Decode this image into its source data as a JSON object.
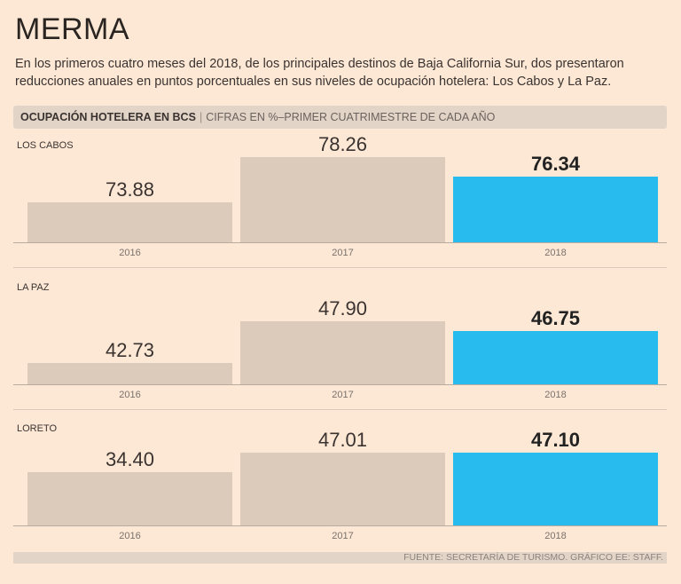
{
  "title": "MERMA",
  "subtitle": "En los primeros cuatro meses del 2018, de los principales destinos de Baja California Sur, dos presentaron reducciones anuales en puntos porcentuales en sus niveles de ocupación hotelera: Los Cabos y La Paz.",
  "header": {
    "bold": "OCUPACIÓN HOTELERA EN BCS",
    "separator": "|",
    "sub": "CIFRAS EN %–PRIMER CUATRIMESTRE DE CADA AÑO"
  },
  "footer": "FUENTE: SECRETARÍA DE TURISMO.  GRÁFICO EE: STAFF.",
  "colors": {
    "bar": "#dccbbb",
    "highlight": "#27bbee"
  },
  "chart_data": [
    {
      "type": "bar",
      "title": "LOS CABOS",
      "categories": [
        "2016",
        "2017",
        "2018"
      ],
      "values": [
        73.88,
        78.26,
        76.34
      ],
      "labels": [
        "73.88",
        "78.26",
        "76.34"
      ],
      "ylim": [
        70,
        78.6
      ],
      "highlight": "2018"
    },
    {
      "type": "bar",
      "title": "LA PAZ",
      "categories": [
        "2016",
        "2017",
        "2018"
      ],
      "values": [
        42.73,
        47.9,
        46.75
      ],
      "labels": [
        "42.73",
        "47.90",
        "46.75"
      ],
      "ylim": [
        40,
        51.2
      ],
      "highlight": "2018"
    },
    {
      "type": "bar",
      "title": "LORETO",
      "categories": [
        "2016",
        "2017",
        "2018"
      ],
      "values": [
        34.4,
        47.01,
        47.1
      ],
      "labels": [
        "34.40",
        "47.01",
        "47.10"
      ],
      "ylim": [
        0,
        57.5
      ],
      "highlight": "2018"
    }
  ]
}
